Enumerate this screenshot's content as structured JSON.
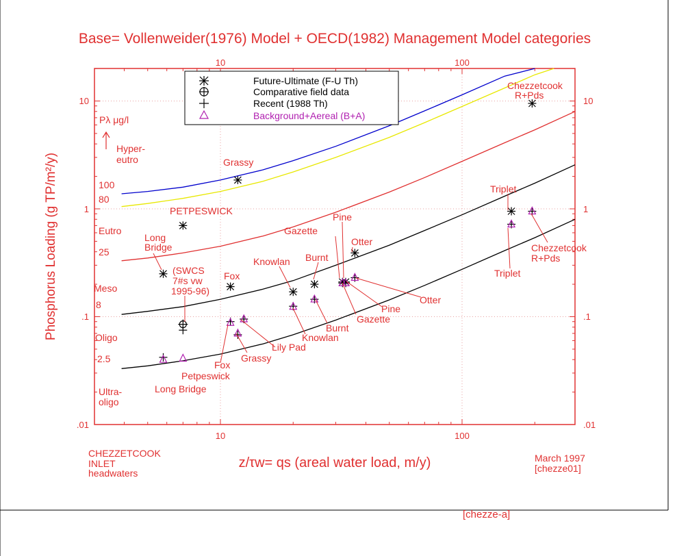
{
  "colors": {
    "axis": "#e03030",
    "text": "#e03030",
    "grid": "#e8a0a0",
    "black": "#000000",
    "purple": "#b020b0",
    "blue": "#0000cc",
    "yellow": "#e8e800",
    "red_line": "#e03030"
  },
  "chart_data": {
    "type": "scatter",
    "title": "Base= Vollenweider(1976) Model + OECD(1982) Management Model categories",
    "xlabel": "z/τw= qs (areal water load, m/y)",
    "ylabel": "Phosphorus Loading (g TP/m²/y)",
    "log_x": true,
    "log_y": true,
    "xlim": [
      3,
      30,
      300
    ],
    "ylim": [
      0.01,
      20
    ],
    "x_ticks": [
      "10",
      "100"
    ],
    "y_ticks": [
      ".01",
      ".1",
      "1",
      "10"
    ],
    "grid": true,
    "legend_position": "top-center",
    "legend": [
      {
        "symbol": "asterisk",
        "label": "Future-Ultimate (F-U Th)"
      },
      {
        "symbol": "circle-plus",
        "label": "Comparative field data"
      },
      {
        "symbol": "plus",
        "label": "Recent (1988 Th)"
      },
      {
        "symbol": "triangle",
        "label": "Background+Aereal (B+A)"
      }
    ],
    "curves": [
      {
        "color": "blue",
        "label": "100",
        "x": [
          3.9,
          5,
          7,
          10,
          15,
          20,
          30,
          50,
          70,
          100,
          150,
          200
        ],
        "y": [
          1.38,
          1.45,
          1.59,
          1.85,
          2.3,
          2.8,
          3.8,
          5.9,
          8.1,
          11.4,
          17,
          22.5
        ]
      },
      {
        "color": "yellow",
        "label": "80",
        "x": [
          3.9,
          5,
          7,
          10,
          15,
          20,
          30,
          50,
          70,
          100,
          150,
          200,
          240
        ],
        "y": [
          1.05,
          1.12,
          1.25,
          1.45,
          1.8,
          2.2,
          3.0,
          4.6,
          6.3,
          8.9,
          13.2,
          17.5,
          21
        ]
      },
      {
        "color": "red",
        "label": "25",
        "x": [
          3.9,
          5,
          7,
          10,
          15,
          20,
          30,
          50,
          70,
          100,
          150,
          200,
          300
        ],
        "y": [
          0.33,
          0.35,
          0.39,
          0.45,
          0.56,
          0.68,
          0.93,
          1.43,
          1.95,
          2.76,
          4.1,
          5.4,
          8.0
        ]
      },
      {
        "color": "black",
        "label": "8",
        "x": [
          3.9,
          5,
          7,
          10,
          15,
          20,
          30,
          50,
          70,
          100,
          150,
          200,
          300
        ],
        "y": [
          0.105,
          0.112,
          0.124,
          0.145,
          0.18,
          0.216,
          0.3,
          0.46,
          0.63,
          0.88,
          1.31,
          1.73,
          2.56
        ]
      },
      {
        "color": "black",
        "label": "2.5",
        "x": [
          3.9,
          5,
          7,
          10,
          15,
          20,
          30,
          50,
          70,
          100,
          150,
          200,
          300
        ],
        "y": [
          0.033,
          0.035,
          0.039,
          0.045,
          0.056,
          0.068,
          0.093,
          0.143,
          0.195,
          0.275,
          0.41,
          0.54,
          0.8
        ]
      }
    ],
    "series": [
      {
        "name": "Future-Ultimate (F-U Th)",
        "symbol": "asterisk",
        "color": "black",
        "points": [
          {
            "label": "Chezzetcook",
            "x": 195,
            "y": 9.5
          },
          {
            "label": "Grassy",
            "x": 11.8,
            "y": 1.85
          },
          {
            "label": "PETPESWICK",
            "x": 7.0,
            "y": 0.7
          },
          {
            "label": "Long Bridge",
            "x": 5.8,
            "y": 0.25
          },
          {
            "label": "Fox",
            "x": 11.0,
            "y": 0.19
          },
          {
            "label": "Knowlan",
            "x": 20.0,
            "y": 0.17
          },
          {
            "label": "Burnt",
            "x": 24.5,
            "y": 0.2
          },
          {
            "label": "Gazette",
            "x": 32.0,
            "y": 0.21
          },
          {
            "label": "Pine",
            "x": 33.0,
            "y": 0.21
          },
          {
            "label": "Otter",
            "x": 36.0,
            "y": 0.39
          },
          {
            "label": "Triplet",
            "x": 160.0,
            "y": 0.95
          }
        ]
      },
      {
        "name": "Comparative field data",
        "symbol": "circle-plus",
        "color": "black",
        "points": [
          {
            "label": "SWCS",
            "x": 7.0,
            "y": 0.085
          }
        ]
      },
      {
        "name": "Recent (1988 Th)",
        "symbol": "plus",
        "color": "black",
        "points": [
          {
            "label": "SWCS",
            "x": 7.0,
            "y": 0.075
          },
          {
            "label": "Long Bridge",
            "x": 5.8,
            "y": 0.042
          },
          {
            "label": "Fox",
            "x": 11.0,
            "y": 0.09
          },
          {
            "label": "Grassy",
            "x": 12.5,
            "y": 0.095
          },
          {
            "label": "Lily Pad",
            "x": 11.8,
            "y": 0.068
          },
          {
            "label": "Knowlan",
            "x": 20.0,
            "y": 0.125
          },
          {
            "label": "Burnt",
            "x": 24.5,
            "y": 0.145
          },
          {
            "label": "Gazette",
            "x": 32.0,
            "y": 0.205
          },
          {
            "label": "Pine",
            "x": 33.0,
            "y": 0.205
          },
          {
            "label": "Otter",
            "x": 36.0,
            "y": 0.23
          },
          {
            "label": "Triplet",
            "x": 160.0,
            "y": 0.72
          },
          {
            "label": "Chezzetcook",
            "x": 195.0,
            "y": 0.95
          }
        ]
      },
      {
        "name": "Background+Aereal (B+A)",
        "symbol": "triangle",
        "color": "purple",
        "points": [
          {
            "label": "Long Bridge",
            "x": 5.8,
            "y": 0.04
          },
          {
            "label": "Petpeswick",
            "x": 7.0,
            "y": 0.041
          },
          {
            "label": "Fox",
            "x": 11.0,
            "y": 0.088
          },
          {
            "label": "Grassy",
            "x": 12.5,
            "y": 0.095
          },
          {
            "label": "Lily Pad",
            "x": 11.8,
            "y": 0.07
          },
          {
            "label": "Knowlan",
            "x": 20.0,
            "y": 0.124
          },
          {
            "label": "Burnt",
            "x": 24.5,
            "y": 0.145
          },
          {
            "label": "Gazette",
            "x": 32.0,
            "y": 0.205
          },
          {
            "label": "Pine",
            "x": 33.0,
            "y": 0.205
          },
          {
            "label": "Otter",
            "x": 36.0,
            "y": 0.23
          },
          {
            "label": "Triplet",
            "x": 160.0,
            "y": 0.72
          },
          {
            "label": "Chezzetcook",
            "x": 195.0,
            "y": 0.95
          }
        ]
      }
    ]
  },
  "left_annotations": {
    "p_unit": "Pλ μg/l",
    "hyper": "Hyper-",
    "eutro_top": "eutro",
    "val100": "100",
    "val80": "80",
    "eutro": "Eutro",
    "val25": "25",
    "meso": "Meso",
    "val8": "8",
    "oligo": "Oligo",
    "val25b": "2.5",
    "ultra": "Ultra-",
    "oligo_b": "oligo"
  },
  "point_labels": {
    "grassy_top": "Grassy",
    "petpeswick_top": "PETPESWICK",
    "long_bridge_1": "Long",
    "long_bridge_2": "Bridge",
    "swcs_1": "(SWCS",
    "swcs_2": "7#s vw",
    "swcs_3": "1995-96)",
    "fox_top": "Fox",
    "knowlan_top": "Knowlan",
    "burnt_top": "Burnt",
    "gazette_top": "Gazette",
    "pine_top": "Pine",
    "otter_top": "Otter",
    "chezz_top_1": "Chezzetcook",
    "chezz_top_2": "R+Pds",
    "triplet_top": "Triplet",
    "triplet_bot": "Triplet",
    "chezz_bot_1": "Chezzetcook",
    "chezz_bot_2": "R+Pds",
    "otter_bot": "Otter",
    "pine_bot": "Pine",
    "gazette_bot": "Gazette",
    "burnt_bot": "Burnt",
    "knowlan_bot": "Knowlan",
    "lilypad_bot": "Lily Pad",
    "grassy_bot": "Grassy",
    "fox_bot": "Fox",
    "petpeswick_bot": "Petpeswick",
    "long_bridge_bot": "Long Bridge"
  },
  "footer": {
    "left_1": "CHEZZETCOOK",
    "left_2": "INLET",
    "left_3": "headwaters",
    "right_1": "March 1997",
    "right_2": "[chezze01]",
    "cut_text": "[chezze-a]"
  }
}
